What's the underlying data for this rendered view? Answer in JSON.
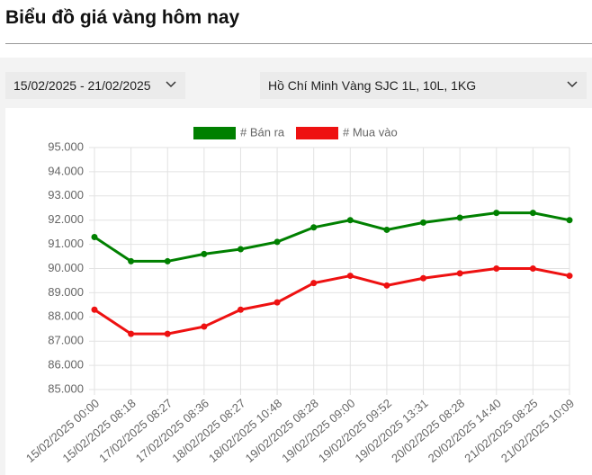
{
  "header": {
    "title": "Biểu đồ giá vàng hôm nay"
  },
  "filters": {
    "date_range": "15/02/2025 - 21/02/2025",
    "product": "Hồ Chí Minh Vàng SJC 1L, 10L, 1KG"
  },
  "chart_data": {
    "type": "line",
    "categories": [
      "15/02/2025 00:00",
      "15/02/2025 08:18",
      "17/02/2025 08:27",
      "17/02/2025 08:36",
      "18/02/2025 08:27",
      "18/02/2025 10:48",
      "19/02/2025 08:28",
      "19/02/2025 09:00",
      "19/02/2025 09:52",
      "19/02/2025 13:31",
      "20/02/2025 08:28",
      "20/02/2025 14:40",
      "21/02/2025 08:25",
      "21/02/2025 10:09"
    ],
    "series": [
      {
        "name": "# Bán ra",
        "color": "#008000",
        "values": [
          91300,
          90300,
          90300,
          90600,
          90800,
          91100,
          91700,
          92000,
          91600,
          91900,
          92100,
          92300,
          92300,
          92000
        ]
      },
      {
        "name": "# Mua vào",
        "color": "#ee1111",
        "values": [
          88300,
          87300,
          87300,
          87600,
          88300,
          88600,
          89400,
          89700,
          89300,
          89600,
          89800,
          90000,
          90000,
          89700
        ]
      }
    ],
    "ylim": [
      85000,
      95000
    ],
    "yticks": [
      {
        "value": 85000,
        "label": "85.000"
      },
      {
        "value": 86000,
        "label": "86.000"
      },
      {
        "value": 87000,
        "label": "87.000"
      },
      {
        "value": 88000,
        "label": "88.000"
      },
      {
        "value": 89000,
        "label": "89.000"
      },
      {
        "value": 90000,
        "label": "90.000"
      },
      {
        "value": 91000,
        "label": "91.000"
      },
      {
        "value": 92000,
        "label": "92.000"
      },
      {
        "value": 93000,
        "label": "93.000"
      },
      {
        "value": 94000,
        "label": "94.000"
      },
      {
        "value": 95000,
        "label": "95.000"
      }
    ],
    "grid": true,
    "legend": "top"
  }
}
